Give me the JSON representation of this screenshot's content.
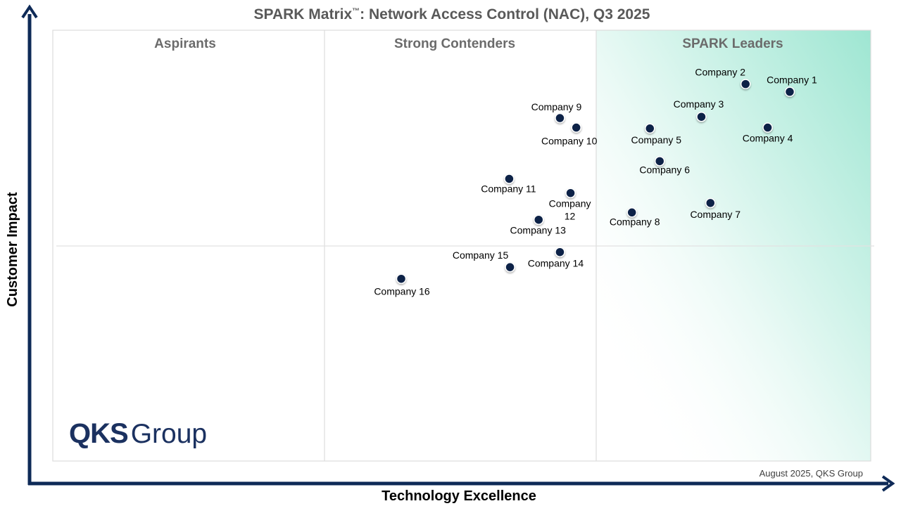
{
  "chart_data": {
    "type": "scatter",
    "title": "SPARK Matrix",
    "title_mark": "™",
    "title_rest": ": Network Access Control (NAC), Q3 2025",
    "xlabel": "Technology Excellence",
    "ylabel": "Customer Impact",
    "xlim": [
      0,
      100
    ],
    "ylim": [
      0,
      100
    ],
    "grid": false,
    "regions": [
      "Aspirants",
      "Strong Contenders",
      "SPARK Leaders"
    ],
    "leader_gradient_color": "#9ee6d2",
    "marker_color": "#0d2347",
    "axis_color": "#0e2a57",
    "points": [
      {
        "label": "Company 1",
        "x": 90.1,
        "y": 85.7
      },
      {
        "label": "Company 2",
        "x": 84.7,
        "y": 87.5
      },
      {
        "label": "Company 3",
        "x": 79.3,
        "y": 79.9
      },
      {
        "label": "Company 4",
        "x": 87.4,
        "y": 77.4
      },
      {
        "label": "Company 5",
        "x": 73.0,
        "y": 77.2
      },
      {
        "label": "Company 6",
        "x": 74.2,
        "y": 69.6
      },
      {
        "label": "Company 7",
        "x": 80.4,
        "y": 59.9
      },
      {
        "label": "Company 8",
        "x": 70.8,
        "y": 57.7
      },
      {
        "label": "Company 9",
        "x": 62.0,
        "y": 79.6
      },
      {
        "label": "Company 10",
        "x": 64.0,
        "y": 77.4
      },
      {
        "label": "Company 11",
        "x": 55.8,
        "y": 65.5
      },
      {
        "label": "Company 12",
        "x": 63.3,
        "y": 62.2
      },
      {
        "label": "Company 13",
        "x": 59.4,
        "y": 56.0
      },
      {
        "label": "Company 14",
        "x": 62.0,
        "y": 48.5
      },
      {
        "label": "Company 15",
        "x": 55.9,
        "y": 45.0
      },
      {
        "label": "Company 16",
        "x": 42.6,
        "y": 42.3
      }
    ]
  },
  "logo": {
    "brand": "QKS",
    "suffix": "Group"
  },
  "footnote": "August 2025, QKS Group"
}
